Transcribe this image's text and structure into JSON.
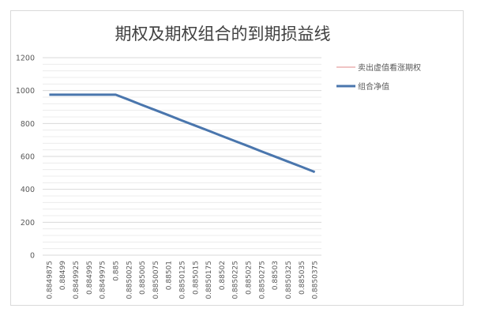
{
  "chart_data": {
    "type": "line",
    "title": "期权及期权组合的到期损益线",
    "xlabel": "",
    "ylabel": "",
    "ylim": [
      0,
      1200
    ],
    "yticks": [
      "0",
      "200",
      "400",
      "600",
      "800",
      "1000",
      "1200"
    ],
    "grid": true,
    "legend_position": "right",
    "categories": [
      "0.8849875",
      "0.88499",
      "0.8849925",
      "0.884995",
      "0.8849975",
      "0.885",
      "0.8850025",
      "0.885005",
      "0.8850075",
      "0.88501",
      "0.8850125",
      "0.885015",
      "0.8850175",
      "0.88502",
      "0.8850225",
      "0.885025",
      "0.8850275",
      "0.88503",
      "0.8850325",
      "0.885035",
      "0.8850375"
    ],
    "series": [
      {
        "name": "卖出虚值看涨期权",
        "color": "#e8a0a0",
        "values": [
          0,
          0,
          0,
          0,
          0,
          0,
          0,
          0,
          0,
          0,
          0,
          0,
          0,
          0,
          0,
          0,
          0,
          0,
          0,
          0,
          0
        ]
      },
      {
        "name": "组合净值",
        "color": "#4a76ad",
        "values": [
          975,
          975,
          975,
          975,
          975,
          975,
          944,
          912,
          881,
          850,
          818,
          787,
          756,
          724,
          693,
          662,
          630,
          599,
          568,
          537,
          505
        ]
      }
    ]
  }
}
